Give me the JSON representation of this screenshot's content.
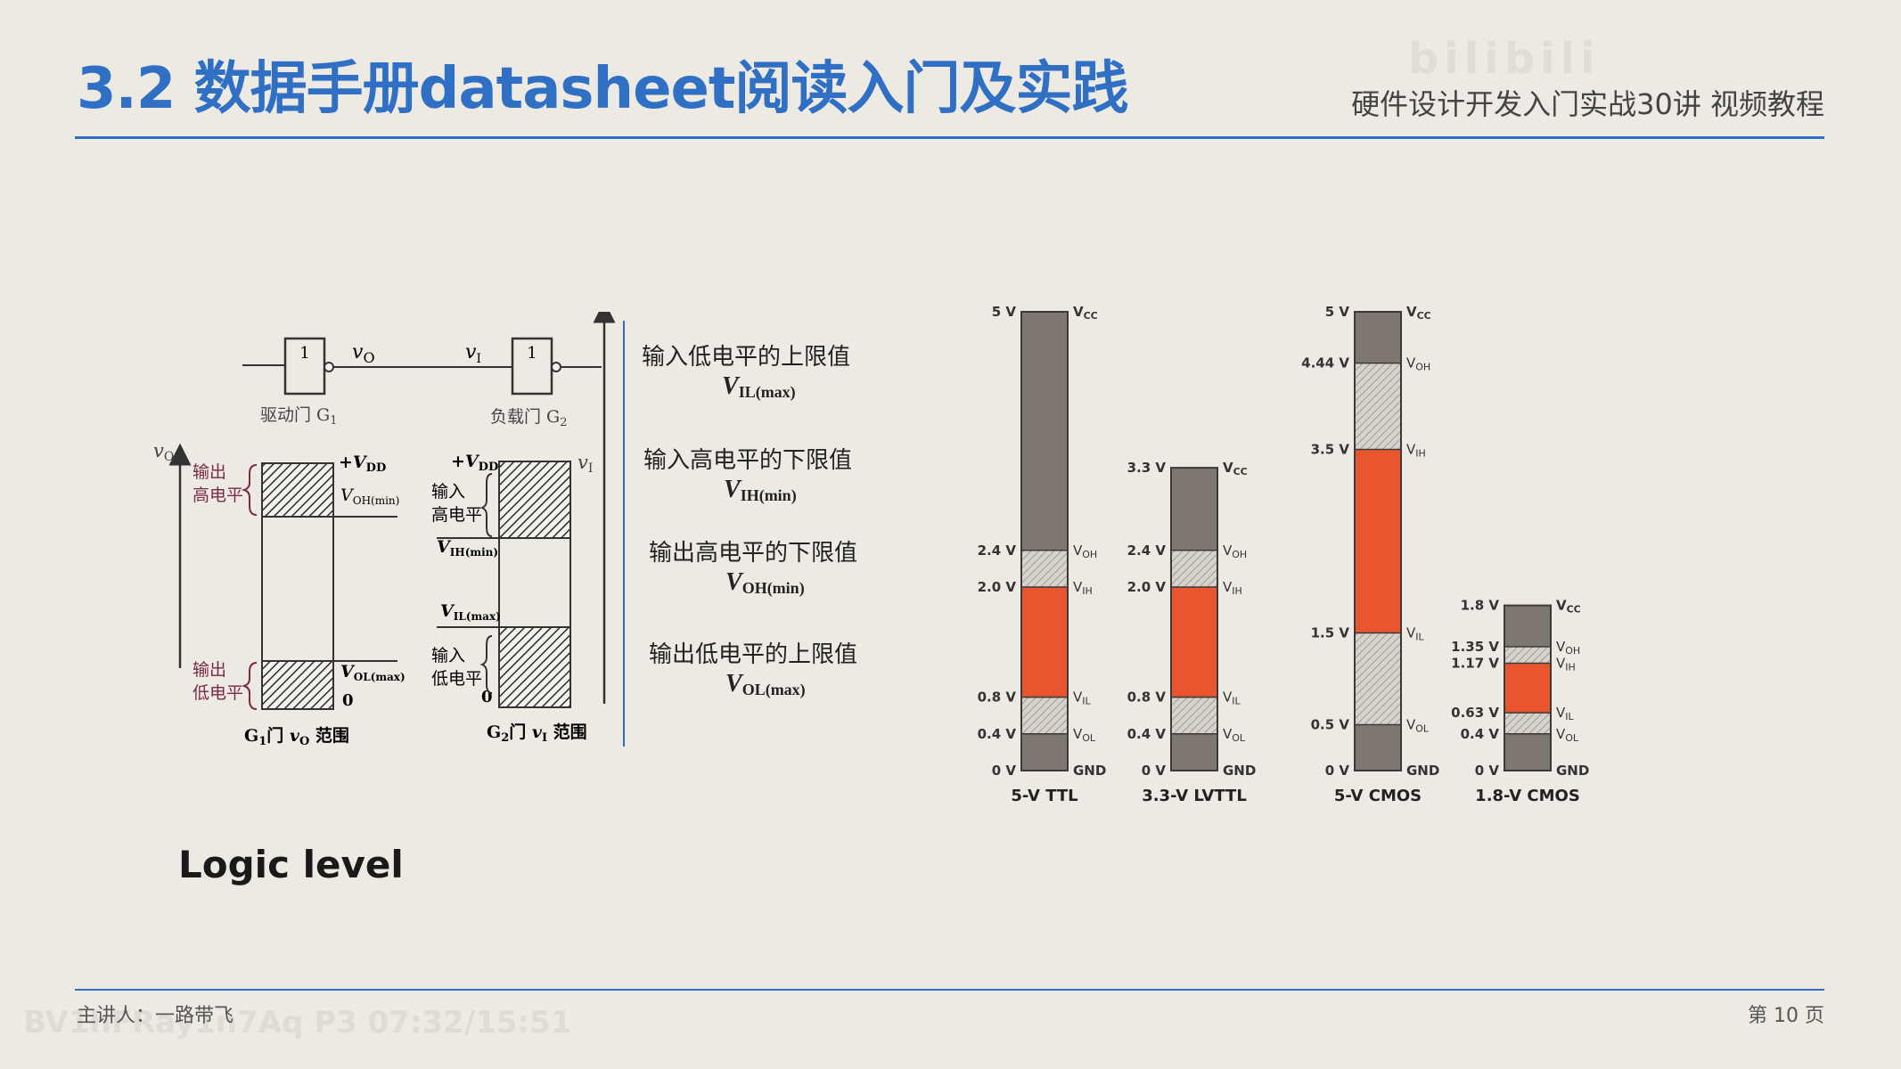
{
  "header": {
    "title": "3.2 数据手册datasheet阅读入门及实践",
    "subtitle": "硬件设计开发入门实战30讲 视频教程",
    "watermark": "bilibili"
  },
  "gate_diagram": {
    "gate1_symbol": "1",
    "gate2_symbol": "1",
    "vo_label": "v",
    "vo_sub": "O",
    "vi_label": "v",
    "vi_sub": "I",
    "driver_label": "驱动门 G",
    "driver_sub": "1",
    "load_label": "负载门 G",
    "load_sub": "2",
    "g1_axis_label": "v",
    "g1_axis_sub": "O",
    "g1_out_high": [
      "输出",
      "高电平"
    ],
    "g1_out_low": [
      "输出",
      "低电平"
    ],
    "g1_vdd": "+V",
    "g1_vdd_sub": "DD",
    "g1_voh": "V",
    "g1_voh_sub": "OH(min)",
    "g1_vol": "V",
    "g1_vol_sub": "OL(max)",
    "g1_zero": "0",
    "g1_caption": "G",
    "g1_caption_rest": "门 ",
    "g1_caption_v": "v",
    "g1_caption_vsub": "O",
    "g1_caption_tail": " 范围",
    "g2_axis_label": "v",
    "g2_axis_sub": "I",
    "g2_in_high": [
      "输入",
      "高电平"
    ],
    "g2_in_low": [
      "输入",
      "低电平"
    ],
    "g2_vdd": "+V",
    "g2_vdd_sub": "DD",
    "g2_vih": "V",
    "g2_vih_sub": "IH(min)",
    "g2_vil": "V",
    "g2_vil_sub": "IL(max)",
    "g2_zero": "0",
    "g2_caption": "G",
    "g2_caption_rest": "门 ",
    "g2_caption_v": "v",
    "g2_caption_vsub": "I",
    "g2_caption_tail": " 范围"
  },
  "definitions": [
    {
      "cn": "输入低电平的上限值",
      "sym": "V",
      "sub": "IL(max)"
    },
    {
      "cn": "输入高电平的下限值",
      "sym": "V",
      "sub": "IH(min)"
    },
    {
      "cn": "输出高电平的下限值",
      "sym": "V",
      "sub": "OH(min)"
    },
    {
      "cn": "输出低电平的上限值",
      "sym": "V",
      "sub": "OL(max)"
    }
  ],
  "chart_data": {
    "type": "bar",
    "title": "",
    "families": [
      {
        "name": "5-V TTL",
        "vcc": 5.0,
        "voh": 2.4,
        "vih": 2.0,
        "vil": 0.8,
        "vol": 0.4,
        "labels": {
          "vcc": "5 V",
          "voh": "2.4 V",
          "vih": "2.0 V",
          "vil": "0.8 V",
          "vol": "0.4 V",
          "gnd": "0 V"
        }
      },
      {
        "name": "3.3-V LVTTL",
        "vcc": 3.3,
        "voh": 2.4,
        "vih": 2.0,
        "vil": 0.8,
        "vol": 0.4,
        "labels": {
          "vcc": "3.3 V",
          "voh": "2.4 V",
          "vih": "2.0 V",
          "vil": "0.8 V",
          "vol": "0.4 V",
          "gnd": "0 V"
        }
      },
      {
        "name": "5-V CMOS",
        "vcc": 5.0,
        "voh": 4.44,
        "vih": 3.5,
        "vil": 1.5,
        "vol": 0.5,
        "labels": {
          "vcc": "5 V",
          "voh": "4.44 V",
          "vih": "3.5 V",
          "vil": "1.5 V",
          "vol": "0.5 V",
          "gnd": "0 V"
        }
      },
      {
        "name": "1.8-V CMOS",
        "vcc": 1.8,
        "voh": 1.35,
        "vih": 1.17,
        "vil": 0.63,
        "vol": 0.4,
        "labels": {
          "vcc": "1.8 V",
          "voh": "1.35 V",
          "vih": "1.17 V",
          "vil": "0.63 V",
          "vol": "0.4 V",
          "gnd": "0 V"
        }
      }
    ],
    "right_labels": {
      "vcc": "V",
      "vcc_sub": "CC",
      "voh": "V",
      "voh_sub": "OH",
      "vih": "V",
      "vih_sub": "IH",
      "vil": "V",
      "vil_sub": "IL",
      "vol": "V",
      "vol_sub": "OL",
      "gnd": "GND"
    },
    "colors": {
      "band": "#7d776f",
      "hatch_bg": "#d6d3cc",
      "hatch_line": "#9e9a94",
      "forbidden": "#e8552f",
      "outline": "#3a3a3a"
    }
  },
  "main": {
    "logic_level": "Logic level"
  },
  "footer": {
    "presenter": "主讲人：一路带飞",
    "page": "第 10 页",
    "video_id": "BV1hFRay1n7Aq P3 07:32/15:51"
  }
}
